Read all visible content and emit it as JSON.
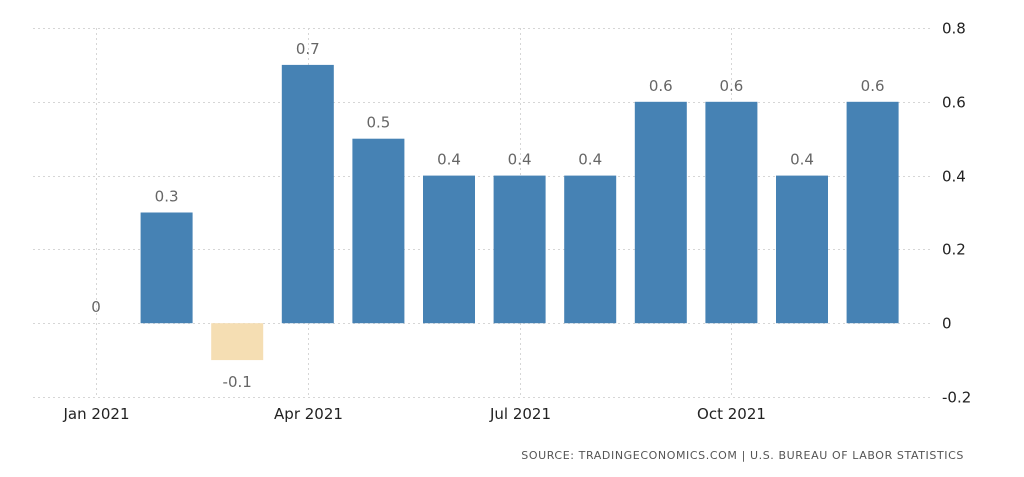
{
  "chart_data": {
    "type": "bar",
    "categories": [
      "Jan 2021",
      "Feb 2021",
      "Mar 2021",
      "Apr 2021",
      "May 2021",
      "Jun 2021",
      "Jul 2021",
      "Aug 2021",
      "Sep 2021",
      "Oct 2021",
      "Nov 2021",
      "Dec 2021"
    ],
    "values": [
      0,
      0.3,
      -0.1,
      0.7,
      0.5,
      0.4,
      0.4,
      0.4,
      0.6,
      0.6,
      0.4,
      0.6
    ],
    "value_labels": [
      "0",
      "0.3",
      "-0.1",
      "0.7",
      "0.5",
      "0.4",
      "0.4",
      "0.4",
      "0.6",
      "0.6",
      "0.4",
      "0.6"
    ],
    "ylim": [
      -0.2,
      0.8
    ],
    "y_ticks": [
      -0.2,
      0,
      0.2,
      0.4,
      0.6,
      0.8
    ],
    "y_tick_labels": [
      "-0.2",
      "0",
      "0.2",
      "0.4",
      "0.6",
      "0.8"
    ],
    "x_tick_labels": [
      "Jan 2021",
      "Apr 2021",
      "Jul 2021",
      "Oct 2021"
    ],
    "x_tick_categories": [
      "Jan 2021",
      "Apr 2021",
      "Jul 2021",
      "Oct 2021"
    ],
    "y_axis_side": "right",
    "grid": true,
    "colors": {
      "positive": "#4682b4",
      "negative": "#f5deb3"
    },
    "title": "",
    "xlabel": "",
    "ylabel": ""
  },
  "source": "SOURCE: TRADINGECONOMICS.COM | U.S. BUREAU OF LABOR STATISTICS"
}
